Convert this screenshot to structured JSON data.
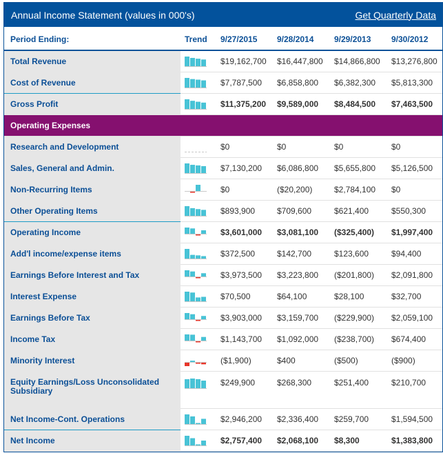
{
  "header": {
    "title": "Annual Income Statement (values in 000's)",
    "quarterly_link": "Get Quarterly Data"
  },
  "columns": {
    "period": "Period Ending:",
    "trend": "Trend",
    "dates": [
      "9/27/2015",
      "9/28/2014",
      "9/29/2013",
      "9/30/2012"
    ]
  },
  "colors": {
    "brand": "#03529c",
    "section": "#85106f",
    "bar_pos": "#48c3d6",
    "bar_neg": "#e8362a"
  },
  "rows": [
    {
      "label": "Total Revenue",
      "values": [
        "$19,162,700",
        "$16,447,800",
        "$14,866,800",
        "$13,276,800"
      ]
    },
    {
      "label": "Cost of Revenue",
      "values": [
        "$7,787,500",
        "$6,858,800",
        "$6,382,300",
        "$5,813,300"
      ]
    },
    {
      "label": "Gross Profit",
      "bold": true,
      "sep": true,
      "values": [
        "$11,375,200",
        "$9,589,000",
        "$8,484,500",
        "$7,463,500"
      ]
    },
    {
      "section": "Operating Expenses"
    },
    {
      "label": "Research and Development",
      "values": [
        "$0",
        "$0",
        "$0",
        "$0"
      ]
    },
    {
      "label": "Sales, General and Admin.",
      "values": [
        "$7,130,200",
        "$6,086,800",
        "$5,655,800",
        "$5,126,500"
      ]
    },
    {
      "label": "Non-Recurring Items",
      "values": [
        "$0",
        "($20,200)",
        "$2,784,100",
        "$0"
      ]
    },
    {
      "label": "Other Operating Items",
      "values": [
        "$893,900",
        "$709,600",
        "$621,400",
        "$550,300"
      ]
    },
    {
      "label": "Operating Income",
      "bold": true,
      "sep": true,
      "values": [
        "$3,601,000",
        "$3,081,100",
        "($325,400)",
        "$1,997,400"
      ]
    },
    {
      "label": "Add'l income/expense items",
      "values": [
        "$372,500",
        "$142,700",
        "$123,600",
        "$94,400"
      ]
    },
    {
      "label": "Earnings Before Interest and Tax",
      "values": [
        "$3,973,500",
        "$3,223,800",
        "($201,800)",
        "$2,091,800"
      ]
    },
    {
      "label": "Interest Expense",
      "values": [
        "$70,500",
        "$64,100",
        "$28,100",
        "$32,700"
      ]
    },
    {
      "label": "Earnings Before Tax",
      "values": [
        "$3,903,000",
        "$3,159,700",
        "($229,900)",
        "$2,059,100"
      ]
    },
    {
      "label": "Income Tax",
      "values": [
        "$1,143,700",
        "$1,092,000",
        "($238,700)",
        "$674,400"
      ]
    },
    {
      "label": "Minority Interest",
      "values": [
        "($1,900)",
        "$400",
        "($500)",
        "($900)"
      ]
    },
    {
      "label": "Equity Earnings/Loss Unconsolidated Subsidiary",
      "tall": true,
      "values": [
        "$249,900",
        "$268,300",
        "$251,400",
        "$210,700"
      ]
    },
    {
      "label": "Net Income-Cont. Operations",
      "values": [
        "$2,946,200",
        "$2,336,400",
        "$259,700",
        "$1,594,500"
      ]
    },
    {
      "label": "Net Income",
      "bold": true,
      "sep": true,
      "values": [
        "$2,757,400",
        "$2,068,100",
        "$8,300",
        "$1,383,800"
      ]
    }
  ]
}
